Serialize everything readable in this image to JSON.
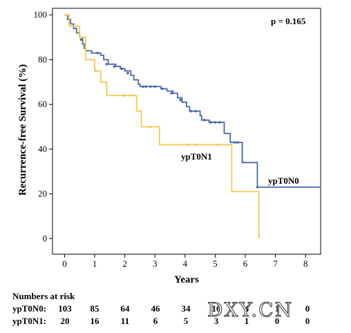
{
  "chart_data": {
    "type": "line",
    "title": "",
    "xlabel": "Years",
    "ylabel": "Recurrence-free Survival (%)",
    "xlim": [
      -0.4,
      8.5
    ],
    "ylim": [
      -7,
      103
    ],
    "xticks": [
      "0",
      "1",
      "2",
      "3",
      "4",
      "5",
      "6",
      "7",
      "8"
    ],
    "yticks": [
      "0",
      "20",
      "40",
      "60",
      "80",
      "100"
    ],
    "grid": false,
    "pvalue_label": "p = 0.165",
    "colors": {
      "ypT0N0": "#4a67ad",
      "ypT0N1": "#f2c94c"
    },
    "series": [
      {
        "name": "ypT0N0",
        "steps": [
          [
            0,
            100
          ],
          [
            0.1,
            98
          ],
          [
            0.2,
            96
          ],
          [
            0.3,
            94
          ],
          [
            0.4,
            92
          ],
          [
            0.5,
            90
          ],
          [
            0.6,
            87
          ],
          [
            0.65,
            85
          ],
          [
            0.7,
            84
          ],
          [
            0.9,
            83
          ],
          [
            1.2,
            82
          ],
          [
            1.3,
            80
          ],
          [
            1.45,
            78
          ],
          [
            1.7,
            77
          ],
          [
            1.85,
            76
          ],
          [
            2.0,
            75
          ],
          [
            2.2,
            73
          ],
          [
            2.3,
            71
          ],
          [
            2.45,
            69
          ],
          [
            2.5,
            68
          ],
          [
            3.2,
            67
          ],
          [
            3.4,
            66
          ],
          [
            3.6,
            65
          ],
          [
            3.75,
            63
          ],
          [
            3.9,
            61
          ],
          [
            4.05,
            59
          ],
          [
            4.15,
            57
          ],
          [
            4.5,
            55
          ],
          [
            4.55,
            53
          ],
          [
            4.8,
            52
          ],
          [
            5.3,
            47
          ],
          [
            5.5,
            43
          ],
          [
            5.9,
            34
          ],
          [
            6.4,
            23
          ],
          [
            8.5,
            23
          ]
        ],
        "censors": [
          [
            0.55,
            89
          ],
          [
            1.1,
            83
          ],
          [
            1.4,
            78
          ],
          [
            1.65,
            77
          ],
          [
            1.9,
            76
          ],
          [
            2.1,
            74
          ],
          [
            2.6,
            68
          ],
          [
            2.7,
            68
          ],
          [
            2.85,
            68
          ],
          [
            3.0,
            68
          ],
          [
            3.25,
            67
          ],
          [
            3.55,
            65
          ],
          [
            3.85,
            62
          ],
          [
            4.2,
            57
          ],
          [
            4.35,
            57
          ],
          [
            4.65,
            53
          ],
          [
            4.85,
            52
          ],
          [
            5.0,
            52
          ],
          [
            5.15,
            52
          ],
          [
            5.65,
            43
          ],
          [
            5.75,
            43
          ],
          [
            6.4,
            23
          ]
        ]
      },
      {
        "name": "ypT0N1",
        "steps": [
          [
            0,
            100
          ],
          [
            0.15,
            95
          ],
          [
            0.5,
            90
          ],
          [
            0.7,
            80
          ],
          [
            1.0,
            75
          ],
          [
            1.2,
            70
          ],
          [
            1.4,
            64
          ],
          [
            2.4,
            57
          ],
          [
            2.55,
            50
          ],
          [
            3.15,
            42
          ],
          [
            5.55,
            21
          ],
          [
            6.45,
            0
          ]
        ],
        "censors": [
          [
            0.7,
            85
          ],
          [
            1.05,
            75
          ],
          [
            1.95,
            64
          ],
          [
            2.2,
            64
          ],
          [
            2.85,
            50
          ],
          [
            4.1,
            42
          ],
          [
            4.35,
            42
          ],
          [
            5.1,
            42
          ]
        ]
      }
    ],
    "annotations": {
      "ypT0N0": "ypT0N0",
      "ypT0N1": "ypT0N1"
    }
  },
  "risk_table": {
    "header": "Numbers at risk",
    "rows": [
      {
        "label": "ypT0N0:",
        "values": [
          "103",
          "85",
          "64",
          "46",
          "34",
          "16",
          "4",
          "1",
          "0"
        ]
      },
      {
        "label": "ypT0N1:",
        "values": [
          "20",
          "16",
          "11",
          "6",
          "5",
          "3",
          "1",
          "0",
          "0"
        ]
      }
    ]
  },
  "watermark": "DXY.CN"
}
